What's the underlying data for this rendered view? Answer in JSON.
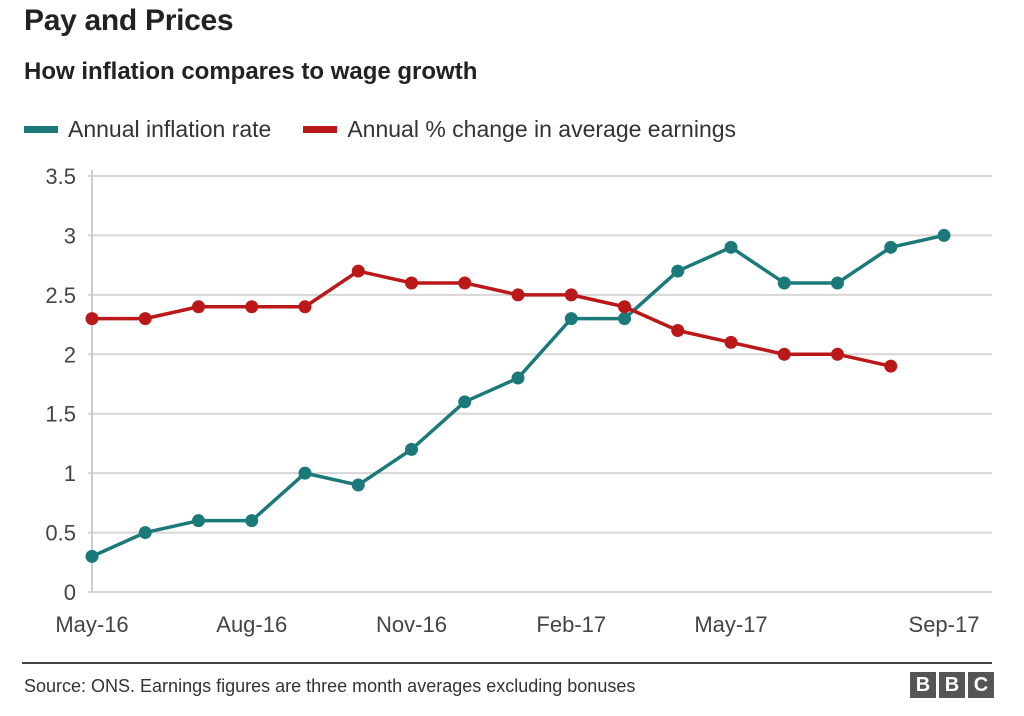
{
  "header": {
    "title": "Pay and Prices",
    "subtitle": "How inflation compares to wage growth"
  },
  "footer": {
    "source": "Source: ONS. Earnings figures are three month averages excluding bonuses",
    "logo_letters": [
      "B",
      "B",
      "C"
    ]
  },
  "chart_data": {
    "type": "line",
    "title": "Pay and Prices",
    "subtitle": "How inflation compares to wage growth",
    "x": [
      "May-16",
      "Jun-16",
      "Jul-16",
      "Aug-16",
      "Sep-16",
      "Oct-16",
      "Nov-16",
      "Dec-16",
      "Jan-17",
      "Feb-17",
      "Mar-17",
      "Apr-17",
      "May-17",
      "Jun-17",
      "Jul-17",
      "Aug-17",
      "Sep-17"
    ],
    "x_tick_labels": [
      "May-16",
      "Aug-16",
      "Nov-16",
      "Feb-17",
      "May-17",
      "Sep-17"
    ],
    "ylim": [
      0,
      3.5
    ],
    "y_ticks": [
      "0",
      "0.5",
      "1",
      "1.5",
      "2",
      "2.5",
      "3",
      "3.5"
    ],
    "grid": true,
    "legend_position": "top-left",
    "series": [
      {
        "name": "Annual inflation rate",
        "color": "#1b7a79",
        "values": [
          0.3,
          0.5,
          0.6,
          0.6,
          1.0,
          0.9,
          1.2,
          1.6,
          1.8,
          2.3,
          2.3,
          2.7,
          2.9,
          2.6,
          2.6,
          2.9,
          3.0
        ]
      },
      {
        "name": "Annual % change in average earnings",
        "color": "#bb1919",
        "values": [
          2.3,
          2.3,
          2.4,
          2.4,
          2.4,
          2.7,
          2.6,
          2.6,
          2.5,
          2.5,
          2.4,
          2.2,
          2.1,
          2.0,
          2.0,
          1.9,
          null
        ]
      }
    ]
  }
}
